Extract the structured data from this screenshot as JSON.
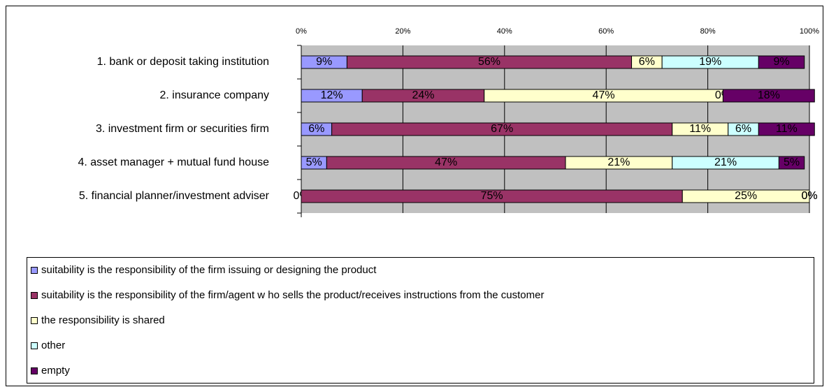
{
  "chart_data": {
    "type": "bar",
    "orientation": "horizontal",
    "stacked": true,
    "categories": [
      "1. bank or deposit taking institution",
      "2. insurance company",
      "3. investment firm or securities firm",
      "4. asset manager + mutual fund house",
      "5. financial planner/investment adviser"
    ],
    "series": [
      {
        "name": "suitability is the responsibility of the firm issuing or designing the product",
        "color": "#9999ff",
        "values": [
          9,
          12,
          6,
          5,
          0
        ],
        "value_labels": [
          "9%",
          "12%",
          "6%",
          "5%",
          "0%"
        ]
      },
      {
        "name": "suitability is the responsibility of the firm/agent w ho sells the product/receives instructions from the customer",
        "color": "#993366",
        "values": [
          56,
          24,
          67,
          47,
          75
        ],
        "value_labels": [
          "56%",
          "24%",
          "67%",
          "47%",
          "75%"
        ]
      },
      {
        "name": "the responsibility is shared",
        "color": "#ffffcc",
        "values": [
          6,
          47,
          11,
          21,
          25
        ],
        "value_labels": [
          "6%",
          "47%",
          "11%",
          "21%",
          "25%"
        ]
      },
      {
        "name": "other",
        "color": "#ccffff",
        "values": [
          19,
          0,
          6,
          21,
          0
        ],
        "value_labels": [
          "19%",
          "0%",
          "6%",
          "21%",
          "0%"
        ]
      },
      {
        "name": "empty",
        "color": "#660066",
        "values": [
          9,
          18,
          11,
          5,
          0
        ],
        "value_labels": [
          "9%",
          "18%",
          "11%",
          "5%",
          "0%"
        ]
      }
    ],
    "xlim": [
      0,
      100
    ],
    "xticks": [
      {
        "value": 0,
        "label": "0%"
      },
      {
        "value": 20,
        "label": "20%"
      },
      {
        "value": 40,
        "label": "40%"
      },
      {
        "value": 60,
        "label": "60%"
      },
      {
        "value": 80,
        "label": "80%"
      },
      {
        "value": 100,
        "label": "100%"
      }
    ],
    "grid": true,
    "legend": "bottom"
  }
}
